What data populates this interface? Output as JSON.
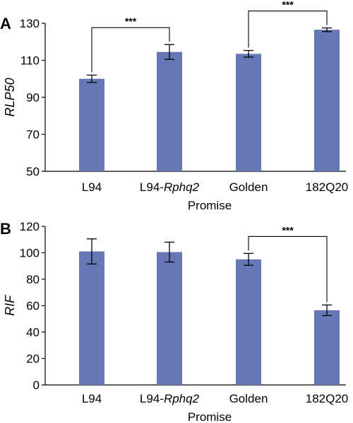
{
  "colors": {
    "bar": "#6677b6",
    "axis": "#000000"
  },
  "chart_data": [
    {
      "type": "bar",
      "panel_label": "A",
      "categories": [
        {
          "name": "L94",
          "base": "L94",
          "italic": ""
        },
        {
          "name": "L94-Rphq2",
          "base": "L94-",
          "italic": "Rphq2"
        },
        {
          "name": "Golden",
          "base": "Golden",
          "italic": ""
        },
        {
          "name": "182Q20",
          "base": "182Q20",
          "italic": ""
        }
      ],
      "values": [
        100,
        114.5,
        113.5,
        126.5
      ],
      "errors": [
        2,
        4,
        1.8,
        1
      ],
      "ylabel": "RLP50",
      "xlabel": "Promise",
      "ylim": [
        50,
        130
      ],
      "yticks": [
        50,
        70,
        90,
        110,
        130
      ],
      "grid": false,
      "significance": [
        {
          "from": 0,
          "to": 1,
          "label": "***"
        },
        {
          "from": 2,
          "to": 3,
          "label": "***"
        }
      ]
    },
    {
      "type": "bar",
      "panel_label": "B",
      "categories": [
        {
          "name": "L94",
          "base": "L94",
          "italic": ""
        },
        {
          "name": "L94-Rphq2",
          "base": "L94-",
          "italic": "Rphq2"
        },
        {
          "name": "Golden",
          "base": "Golden",
          "italic": ""
        },
        {
          "name": "182Q20",
          "base": "182Q20",
          "italic": ""
        }
      ],
      "values": [
        101,
        100.5,
        95,
        56.5
      ],
      "errors": [
        9.5,
        7.5,
        4.5,
        4
      ],
      "ylabel": "RIF",
      "xlabel": "Promise",
      "ylim": [
        0,
        120
      ],
      "yticks": [
        0,
        20,
        40,
        60,
        80,
        100,
        120
      ],
      "grid": false,
      "significance": [
        {
          "from": 2,
          "to": 3,
          "label": "***"
        }
      ]
    }
  ]
}
